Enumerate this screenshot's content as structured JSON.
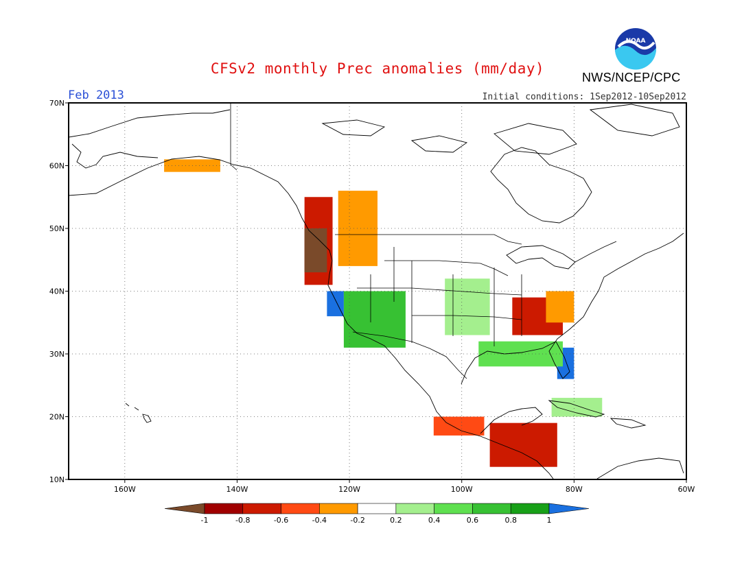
{
  "header": {
    "title": "CFSv2 monthly Prec anomalies (mm/day)",
    "agency": "NWS/NCEP/CPC",
    "logo_text": "NOAA",
    "valid_month": "Feb 2013",
    "initial_conditions": "Initial conditions: 1Sep2012-10Sep2012"
  },
  "map": {
    "lon_range": [
      -170,
      -60
    ],
    "lat_range": [
      10,
      70
    ],
    "lon_ticks": [
      {
        "value": -160,
        "label": "160W"
      },
      {
        "value": -140,
        "label": "140W"
      },
      {
        "value": -120,
        "label": "120W"
      },
      {
        "value": -100,
        "label": "100W"
      },
      {
        "value": -80,
        "label": "80W"
      },
      {
        "value": -60,
        "label": "60W"
      }
    ],
    "lat_ticks": [
      {
        "value": 70,
        "label": "70N"
      },
      {
        "value": 60,
        "label": "60N"
      },
      {
        "value": 50,
        "label": "50N"
      },
      {
        "value": 40,
        "label": "40N"
      },
      {
        "value": 30,
        "label": "30N"
      },
      {
        "value": 20,
        "label": "20N"
      },
      {
        "value": 10,
        "label": "10N"
      }
    ],
    "grid": "dotted",
    "colors": {
      "c_lt_m1": "#7a4a2a",
      "c_m1_m08": "#a00000",
      "c_m08_m06": "#cc1a00",
      "c_m06_m04": "#ff4a14",
      "c_m04_m02": "#ff9a00",
      "c_m02_02": "#ffffff",
      "c_02_04": "#a4ef8e",
      "c_04_06": "#5fe050",
      "c_06_08": "#37c133",
      "c_08_1": "#18a018",
      "c_gt_1": "#1a70e0"
    }
  },
  "colorbar": {
    "labels": [
      "-1",
      "-0.8",
      "-0.6",
      "-0.4",
      "-0.2",
      "0.2",
      "0.4",
      "0.6",
      "0.8",
      "1"
    ],
    "colors": [
      "#7a4a2a",
      "#a00000",
      "#cc1a00",
      "#ff4a14",
      "#ff9a00",
      "#ffffff",
      "#a4ef8e",
      "#5fe050",
      "#37c133",
      "#18a018",
      "#1a70e0"
    ]
  },
  "anomaly_regions": [
    {
      "name": "Pacific NW coast",
      "lon": [
        -128,
        -123
      ],
      "lat": [
        41,
        55
      ],
      "color_class": "c_m08_m06"
    },
    {
      "name": "BC Rockies",
      "lon": [
        -122,
        -115
      ],
      "lat": [
        44,
        56
      ],
      "color_class": "c_m04_m02"
    },
    {
      "name": "Vancouver Island",
      "lon": [
        -128,
        -124
      ],
      "lat": [
        43,
        50
      ],
      "color_class": "c_lt_m1"
    },
    {
      "name": "Northern California",
      "lon": [
        -124,
        -121
      ],
      "lat": [
        36,
        40
      ],
      "color_class": "c_gt_1"
    },
    {
      "name": "Southwest US",
      "lon": [
        -121,
        -110
      ],
      "lat": [
        31,
        40
      ],
      "color_class": "c_06_08"
    },
    {
      "name": "Central Plains",
      "lon": [
        -103,
        -95
      ],
      "lat": [
        33,
        42
      ],
      "color_class": "c_02_04"
    },
    {
      "name": "Tennessee Valley",
      "lon": [
        -91,
        -82
      ],
      "lat": [
        33,
        39
      ],
      "color_class": "c_m08_m06"
    },
    {
      "name": "Appalachians",
      "lon": [
        -85,
        -80
      ],
      "lat": [
        35,
        40
      ],
      "color_class": "c_m04_m02"
    },
    {
      "name": "Florida",
      "lon": [
        -83,
        -80
      ],
      "lat": [
        26,
        31
      ],
      "color_class": "c_gt_1"
    },
    {
      "name": "Gulf Coast",
      "lon": [
        -97,
        -82
      ],
      "lat": [
        28,
        32
      ],
      "color_class": "c_04_06"
    },
    {
      "name": "Southern Mexico",
      "lon": [
        -105,
        -96
      ],
      "lat": [
        17,
        20
      ],
      "color_class": "c_m06_m04"
    },
    {
      "name": "Central America",
      "lon": [
        -95,
        -83
      ],
      "lat": [
        12,
        19
      ],
      "color_class": "c_m08_m06"
    },
    {
      "name": "Southern Alaska",
      "lon": [
        -153,
        -143
      ],
      "lat": [
        59,
        61
      ],
      "color_class": "c_m04_m02"
    },
    {
      "name": "Cuba",
      "lon": [
        -84,
        -75
      ],
      "lat": [
        20,
        23
      ],
      "color_class": "c_02_04"
    }
  ]
}
